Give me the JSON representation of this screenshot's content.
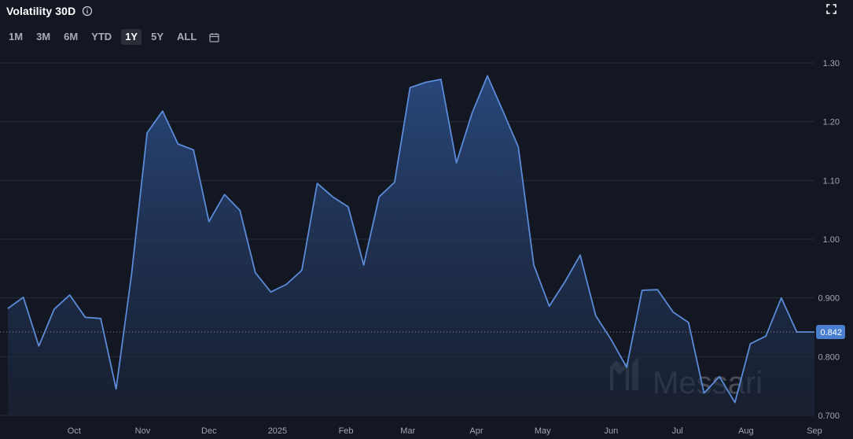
{
  "header": {
    "title": "Volatility 30D",
    "info_icon": "info-icon",
    "expand_icon": "expand-icon"
  },
  "ranges": {
    "buttons": [
      {
        "label": "1M"
      },
      {
        "label": "3M"
      },
      {
        "label": "6M"
      },
      {
        "label": "YTD"
      },
      {
        "label": "1Y",
        "active": true
      },
      {
        "label": "5Y"
      },
      {
        "label": "ALL"
      }
    ],
    "calendar_icon": "calendar-icon"
  },
  "watermark": "Messari",
  "colors": {
    "background": "#131722",
    "line": "#5b8bd8",
    "area_top": "#2a4a80",
    "grid": "#2a2e39",
    "badge": "#4a7fd0"
  },
  "chart_data": {
    "type": "area",
    "title": "Volatility 30D",
    "y_axis_position": "right",
    "ylim": [
      0.7,
      1.3
    ],
    "y_ticks": [
      "0.700",
      "0.800",
      "0.900",
      "1.00",
      "1.10",
      "1.20",
      "1.30"
    ],
    "x_ticks": [
      "Oct",
      "Nov",
      "Dec",
      "2025",
      "Feb",
      "Mar",
      "Apr",
      "May",
      "Jun",
      "Jul",
      "Aug",
      "Sep"
    ],
    "x_tick_dates": [
      "2024-10-01",
      "2024-11-01",
      "2024-12-01",
      "2025-01-01",
      "2025-02-01",
      "2025-03-01",
      "2025-04-01",
      "2025-05-01",
      "2025-06-01",
      "2025-07-01",
      "2025-08-01",
      "2025-09-01"
    ],
    "x_range": [
      "2024-09-01",
      "2025-09-01"
    ],
    "last_value": "0.842",
    "grid": true,
    "series": [
      {
        "x": [
          "2024-09-01",
          "2024-09-08",
          "2024-09-15",
          "2024-09-22",
          "2024-09-29",
          "2024-10-06",
          "2024-10-13",
          "2024-10-20",
          "2024-10-27",
          "2024-11-03",
          "2024-11-10",
          "2024-11-17",
          "2024-11-24",
          "2024-12-01",
          "2024-12-08",
          "2024-12-15",
          "2024-12-22",
          "2024-12-29",
          "2025-01-05",
          "2025-01-12",
          "2025-01-19",
          "2025-01-26",
          "2025-02-02",
          "2025-02-09",
          "2025-02-16",
          "2025-02-23",
          "2025-03-02",
          "2025-03-09",
          "2025-03-16",
          "2025-03-23",
          "2025-03-30",
          "2025-04-06",
          "2025-04-13",
          "2025-04-20",
          "2025-04-27",
          "2025-05-04",
          "2025-05-11",
          "2025-05-18",
          "2025-05-25",
          "2025-06-01",
          "2025-06-08",
          "2025-06-15",
          "2025-06-22",
          "2025-06-29",
          "2025-07-06",
          "2025-07-13",
          "2025-07-20",
          "2025-07-27",
          "2025-08-03",
          "2025-08-10",
          "2025-08-17",
          "2025-08-24",
          "2025-08-31",
          "2025-09-01"
        ],
        "y": [
          0.882,
          0.901,
          0.818,
          0.881,
          0.905,
          0.867,
          0.865,
          0.745,
          0.941,
          1.181,
          1.218,
          1.162,
          1.152,
          1.03,
          1.076,
          1.049,
          0.943,
          0.91,
          0.923,
          0.947,
          1.095,
          1.072,
          1.055,
          0.956,
          1.072,
          1.097,
          1.258,
          1.267,
          1.272,
          1.13,
          1.214,
          1.278,
          1.218,
          1.157,
          0.956,
          0.886,
          0.927,
          0.973,
          0.87,
          0.829,
          0.782,
          0.913,
          0.914,
          0.876,
          0.858,
          0.738,
          0.766,
          0.722,
          0.822,
          0.835,
          0.9,
          0.842,
          0.842,
          0.842
        ]
      }
    ]
  }
}
